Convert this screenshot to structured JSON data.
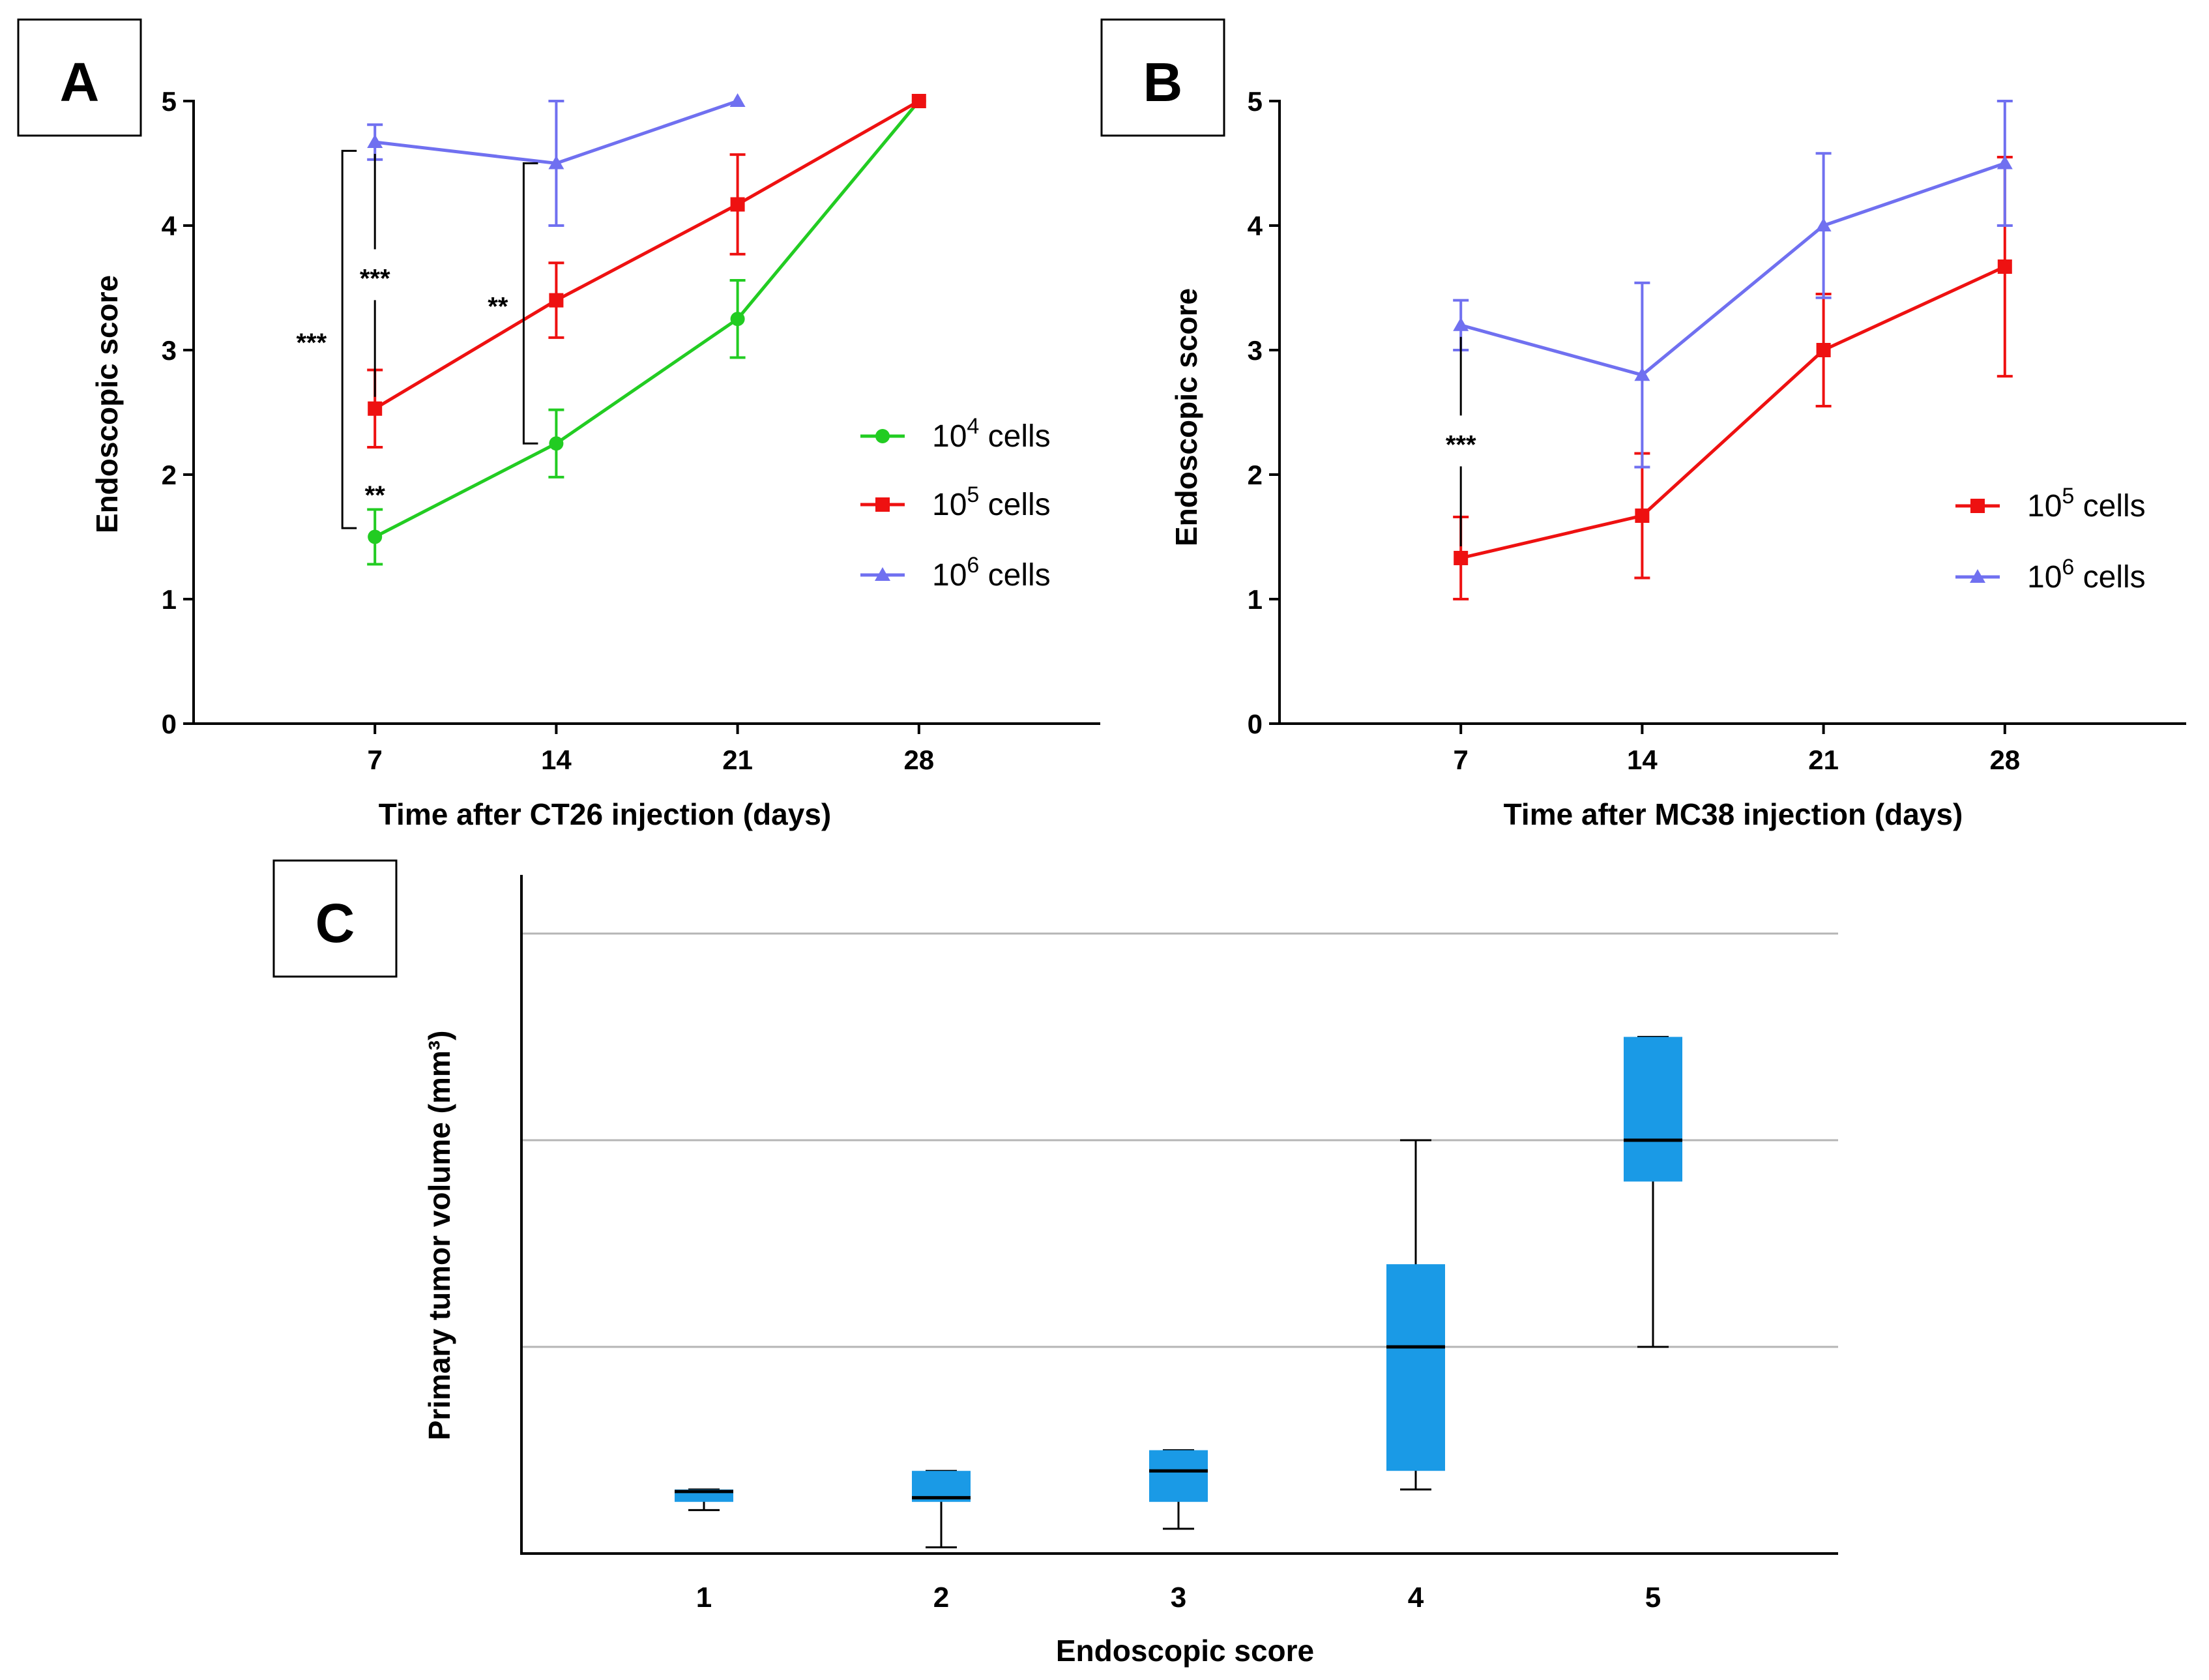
{
  "panels": {
    "A": {
      "label": "A",
      "chart_data": {
        "type": "line",
        "title": "",
        "xlabel": "Time after CT26 injection (days)",
        "ylabel": "Endoscopic score",
        "xlim": [
          0,
          35
        ],
        "ylim": [
          0,
          5
        ],
        "xticks": [
          7,
          14,
          21,
          28
        ],
        "yticks": [
          0,
          1,
          2,
          3,
          4,
          5
        ],
        "series": [
          {
            "name": "10^4 cells",
            "base": "10",
            "exp": "4",
            "suffix": "cells",
            "color": "#22cc22",
            "marker": "circle",
            "x": [
              7,
              14,
              21,
              28
            ],
            "y": [
              1.5,
              2.25,
              3.25,
              5.0
            ],
            "err": [
              0.22,
              0.27,
              0.31,
              0
            ]
          },
          {
            "name": "10^5 cells",
            "base": "10",
            "exp": "5",
            "suffix": "cells",
            "color": "#ee1111",
            "marker": "square",
            "x": [
              7,
              14,
              21,
              28
            ],
            "y": [
              2.53,
              3.4,
              4.17,
              5.0
            ],
            "err": [
              0.31,
              0.3,
              0.4,
              0
            ]
          },
          {
            "name": "10^6 cells",
            "base": "10",
            "exp": "6",
            "suffix": "cells",
            "color": "#7070f0",
            "marker": "triangle",
            "x": [
              7,
              14,
              21
            ],
            "y": [
              4.67,
              4.5,
              5.0
            ],
            "err": [
              0.14,
              0.5,
              0
            ]
          }
        ],
        "significance": [
          {
            "label": "***",
            "x": 7,
            "y1": 2.53,
            "y2": 4.67,
            "style": "line"
          },
          {
            "label": "**",
            "x": 7,
            "y1": 1.5,
            "y2": 2.53,
            "style": "none"
          },
          {
            "label": "***",
            "x": 7,
            "y1": 1.57,
            "y2": 4.6,
            "style": "bracket"
          },
          {
            "label": "**",
            "x": 14,
            "y1": 2.25,
            "y2": 4.5,
            "style": "bracket"
          }
        ]
      }
    },
    "B": {
      "label": "B",
      "chart_data": {
        "type": "line",
        "title": "",
        "xlabel": "Time after MC38 injection (days)",
        "ylabel": "Endoscopic score",
        "xlim": [
          0,
          35
        ],
        "ylim": [
          0,
          5
        ],
        "xticks": [
          7,
          14,
          21,
          28
        ],
        "yticks": [
          0,
          1,
          2,
          3,
          4,
          5
        ],
        "series": [
          {
            "name": "10^5 cells",
            "base": "10",
            "exp": "5",
            "suffix": "cells",
            "color": "#ee1111",
            "marker": "square",
            "x": [
              7,
              14,
              21,
              28
            ],
            "y": [
              1.33,
              1.67,
              3.0,
              3.67
            ],
            "err": [
              0.33,
              0.5,
              0.45,
              0.88
            ]
          },
          {
            "name": "10^6 cells",
            "base": "10",
            "exp": "6",
            "suffix": "cells",
            "color": "#7070f0",
            "marker": "triangle",
            "x": [
              7,
              14,
              21,
              28
            ],
            "y": [
              3.2,
              2.8,
              4.0,
              4.5
            ],
            "err": [
              0.2,
              0.74,
              0.58,
              0.5
            ]
          }
        ],
        "significance": [
          {
            "label": "***",
            "x": 7,
            "y1": 1.33,
            "y2": 3.2,
            "style": "line"
          }
        ]
      }
    },
    "C": {
      "label": "C",
      "chart_data": {
        "type": "box",
        "title": "",
        "xlabel": "Endoscopic score",
        "ylabel": "Primary tumor volume (mm³)",
        "categories": [
          "1",
          "2",
          "3",
          "4",
          "5"
        ],
        "ylim": [
          0,
          300
        ],
        "gridlines": [
          100,
          200,
          300
        ],
        "box_color": "#1a9ae6",
        "boxes": [
          {
            "category": "1",
            "min": 21,
            "q1": 25,
            "median": 30,
            "q3": 31,
            "max": 31
          },
          {
            "category": "2",
            "min": 3,
            "q1": 25,
            "median": 27,
            "q3": 40,
            "max": 40
          },
          {
            "category": "3",
            "min": 12,
            "q1": 25,
            "median": 40,
            "q3": 50,
            "max": 50
          },
          {
            "category": "4",
            "min": 31,
            "q1": 40,
            "median": 100,
            "q3": 140,
            "max": 200
          },
          {
            "category": "5",
            "min": 100,
            "q1": 180,
            "median": 200,
            "q3": 250,
            "max": 250
          }
        ]
      }
    }
  }
}
